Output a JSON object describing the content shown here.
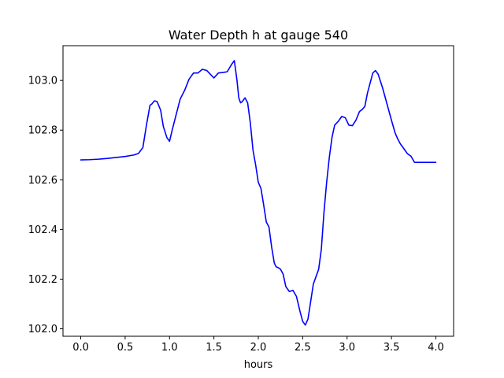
{
  "chart_data": {
    "type": "line",
    "title": "Water Depth h at gauge 540",
    "xlabel": "hours",
    "ylabel": "",
    "xlim": [
      -0.2,
      4.2
    ],
    "ylim": [
      101.97,
      103.14
    ],
    "xticks": [
      0.0,
      0.5,
      1.0,
      1.5,
      2.0,
      2.5,
      3.0,
      3.5,
      4.0
    ],
    "xtick_labels": [
      "0.0",
      "0.5",
      "1.0",
      "1.5",
      "2.0",
      "2.5",
      "3.0",
      "3.5",
      "4.0"
    ],
    "yticks": [
      102.0,
      102.2,
      102.4,
      102.6,
      102.8,
      103.0
    ],
    "ytick_labels": [
      "102.0",
      "102.2",
      "102.4",
      "102.6",
      "102.8",
      "103.0"
    ],
    "grid": false,
    "series": [
      {
        "color": "#0000ff",
        "x": [
          0.0,
          0.1,
          0.2,
          0.3,
          0.4,
          0.5,
          0.6,
          0.65,
          0.7,
          0.74,
          0.78,
          0.8,
          0.83,
          0.86,
          0.9,
          0.93,
          0.97,
          1.0,
          1.03,
          1.08,
          1.12,
          1.17,
          1.22,
          1.27,
          1.32,
          1.37,
          1.42,
          1.46,
          1.5,
          1.55,
          1.6,
          1.65,
          1.7,
          1.73,
          1.76,
          1.78,
          1.8,
          1.82,
          1.85,
          1.88,
          1.91,
          1.94,
          1.97,
          2.0,
          2.03,
          2.06,
          2.09,
          2.12,
          2.15,
          2.18,
          2.2,
          2.23,
          2.25,
          2.28,
          2.31,
          2.35,
          2.39,
          2.43,
          2.47,
          2.5,
          2.53,
          2.56,
          2.59,
          2.62,
          2.65,
          2.68,
          2.71,
          2.74,
          2.77,
          2.8,
          2.83,
          2.86,
          2.9,
          2.94,
          2.98,
          3.02,
          3.06,
          3.1,
          3.14,
          3.17,
          3.2,
          3.23,
          3.26,
          3.29,
          3.32,
          3.35,
          3.4,
          3.45,
          3.5,
          3.54,
          3.57,
          3.6,
          3.64,
          3.68,
          3.72,
          3.76,
          3.8,
          3.86,
          3.92,
          3.96,
          4.0
        ],
        "y": [
          102.68,
          102.681,
          102.683,
          102.686,
          102.69,
          102.694,
          102.7,
          102.706,
          102.73,
          102.82,
          102.9,
          102.905,
          102.918,
          102.915,
          102.88,
          102.815,
          102.77,
          102.755,
          102.8,
          102.87,
          102.925,
          102.96,
          103.005,
          103.03,
          103.03,
          103.045,
          103.04,
          103.025,
          103.01,
          103.03,
          103.032,
          103.035,
          103.065,
          103.08,
          103.0,
          102.93,
          102.91,
          102.915,
          102.93,
          102.91,
          102.83,
          102.72,
          102.66,
          102.59,
          102.565,
          102.5,
          102.43,
          102.41,
          102.33,
          102.265,
          102.25,
          102.245,
          102.24,
          102.22,
          102.17,
          102.15,
          102.155,
          102.13,
          102.07,
          102.03,
          102.015,
          102.04,
          102.11,
          102.18,
          102.21,
          102.24,
          102.32,
          102.47,
          102.59,
          102.69,
          102.77,
          102.82,
          102.835,
          102.855,
          102.85,
          102.82,
          102.818,
          102.84,
          102.875,
          102.883,
          102.895,
          102.95,
          102.99,
          103.03,
          103.04,
          103.025,
          102.97,
          102.905,
          102.84,
          102.79,
          102.765,
          102.745,
          102.725,
          102.705,
          102.695,
          102.67,
          102.67,
          102.67,
          102.67,
          102.67,
          102.67
        ]
      }
    ]
  }
}
